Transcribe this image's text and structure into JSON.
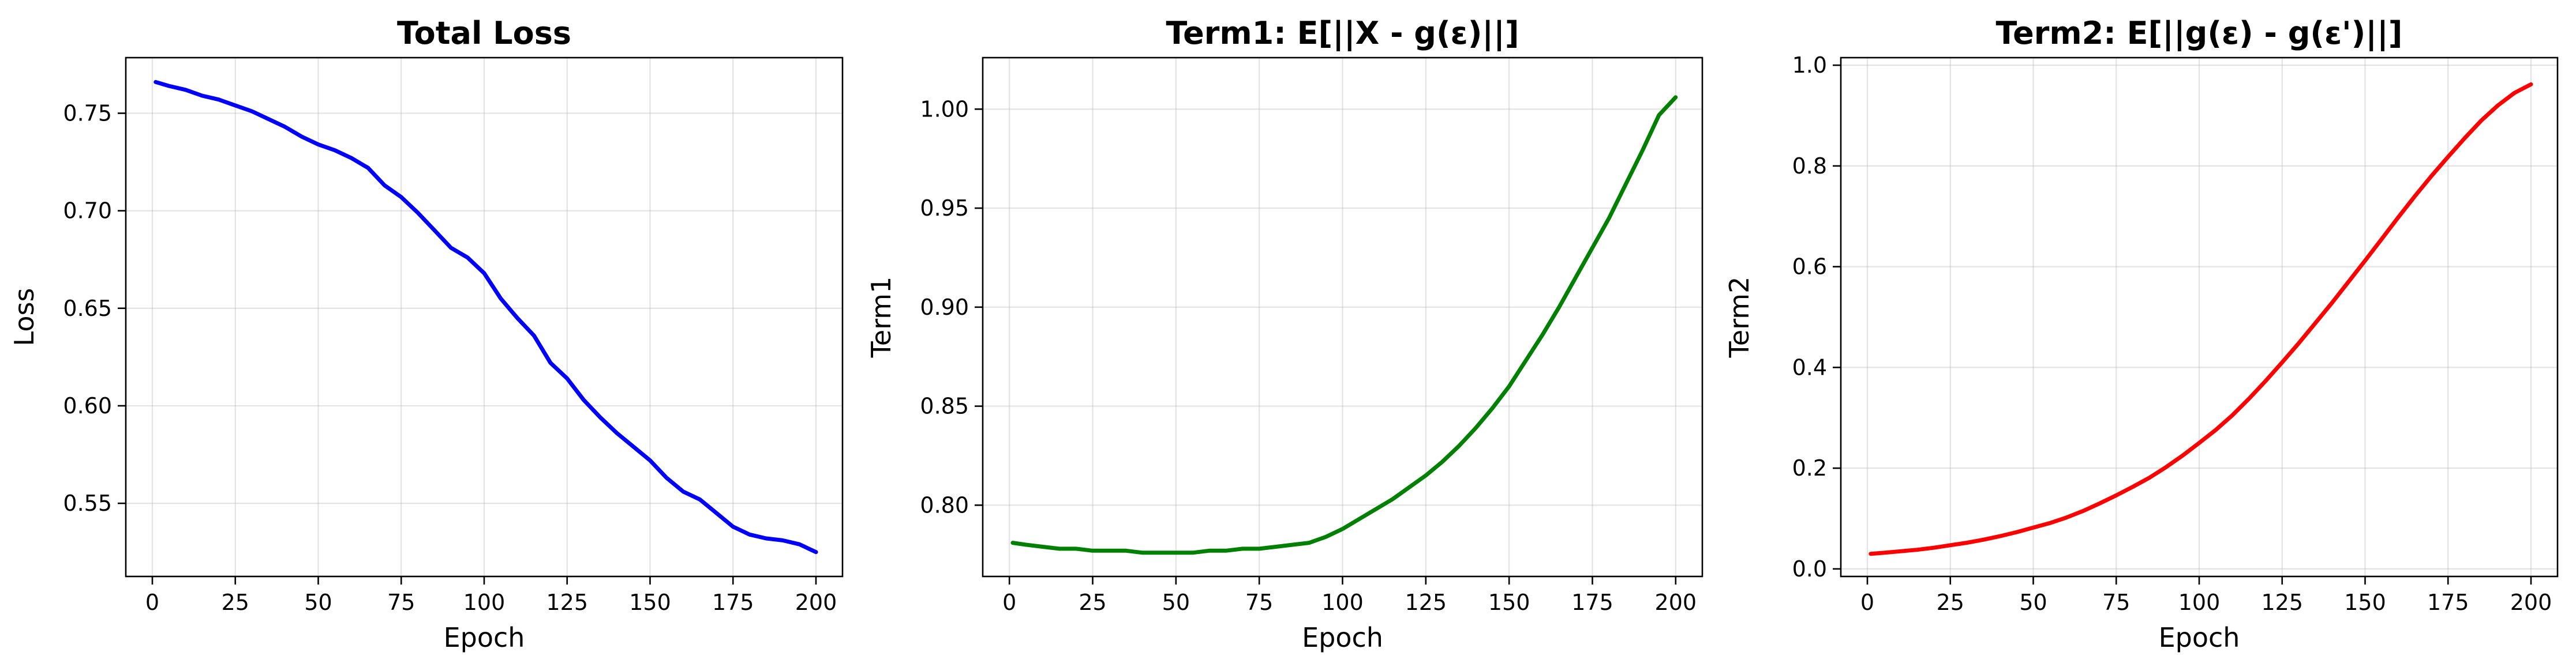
{
  "chart_data": [
    {
      "type": "line",
      "title": "Total Loss",
      "xlabel": "Epoch",
      "ylabel": "Loss",
      "xlim": [
        -8,
        208
      ],
      "ylim": [
        0.5125,
        0.7785
      ],
      "xticks": [
        0,
        25,
        50,
        75,
        100,
        125,
        150,
        175,
        200
      ],
      "yticks": [
        0.55,
        0.6,
        0.65,
        0.7,
        0.75
      ],
      "ytick_labels": [
        "0.55",
        "0.60",
        "0.65",
        "0.70",
        "0.75"
      ],
      "grid": true,
      "series": [
        {
          "color": "#0000ff",
          "x": [
            1,
            5,
            10,
            15,
            20,
            25,
            30,
            35,
            40,
            45,
            50,
            55,
            60,
            65,
            70,
            75,
            80,
            85,
            90,
            95,
            100,
            105,
            110,
            115,
            120,
            125,
            130,
            135,
            140,
            145,
            150,
            155,
            160,
            165,
            170,
            175,
            180,
            185,
            190,
            195,
            200
          ],
          "y": [
            0.766,
            0.764,
            0.762,
            0.759,
            0.757,
            0.754,
            0.751,
            0.747,
            0.743,
            0.738,
            0.734,
            0.731,
            0.727,
            0.722,
            0.713,
            0.707,
            0.699,
            0.69,
            0.681,
            0.676,
            0.668,
            0.655,
            0.645,
            0.636,
            0.622,
            0.614,
            0.603,
            0.594,
            0.586,
            0.579,
            0.572,
            0.563,
            0.556,
            0.552,
            0.545,
            0.538,
            0.534,
            0.532,
            0.531,
            0.529,
            0.525
          ]
        }
      ]
    },
    {
      "type": "line",
      "title": "Term1: E[||X - g(ε)||]",
      "xlabel": "Epoch",
      "ylabel": "Term1",
      "xlim": [
        -8,
        208
      ],
      "ylim": [
        0.764,
        1.026
      ],
      "xticks": [
        0,
        25,
        50,
        75,
        100,
        125,
        150,
        175,
        200
      ],
      "yticks": [
        0.8,
        0.85,
        0.9,
        0.95,
        1.0
      ],
      "ytick_labels": [
        "0.80",
        "0.85",
        "0.90",
        "0.95",
        "1.00"
      ],
      "grid": true,
      "series": [
        {
          "color": "#008000",
          "x": [
            1,
            5,
            10,
            15,
            20,
            25,
            30,
            35,
            40,
            45,
            50,
            55,
            60,
            65,
            70,
            75,
            80,
            85,
            90,
            95,
            100,
            105,
            110,
            115,
            120,
            125,
            130,
            135,
            140,
            145,
            150,
            155,
            160,
            165,
            170,
            175,
            180,
            185,
            190,
            195,
            200
          ],
          "y": [
            0.781,
            0.78,
            0.779,
            0.778,
            0.778,
            0.777,
            0.777,
            0.777,
            0.776,
            0.776,
            0.776,
            0.776,
            0.777,
            0.777,
            0.778,
            0.778,
            0.779,
            0.78,
            0.781,
            0.784,
            0.788,
            0.793,
            0.798,
            0.803,
            0.809,
            0.815,
            0.822,
            0.83,
            0.839,
            0.849,
            0.86,
            0.873,
            0.886,
            0.9,
            0.915,
            0.93,
            0.945,
            0.962,
            0.979,
            0.997,
            1.006
          ]
        }
      ]
    },
    {
      "type": "line",
      "title": "Term2: E[||g(ε) - g(ε')||]",
      "xlabel": "Epoch",
      "ylabel": "Term2",
      "xlim": [
        -8,
        208
      ],
      "ylim": [
        -0.015,
        1.015
      ],
      "xticks": [
        0,
        25,
        50,
        75,
        100,
        125,
        150,
        175,
        200
      ],
      "yticks": [
        0.0,
        0.2,
        0.4,
        0.6,
        0.8,
        1.0
      ],
      "ytick_labels": [
        "0.0",
        "0.2",
        "0.4",
        "0.6",
        "0.8",
        "1.0"
      ],
      "grid": true,
      "series": [
        {
          "color": "#ff0000",
          "x": [
            1,
            5,
            10,
            15,
            20,
            25,
            30,
            35,
            40,
            45,
            50,
            55,
            60,
            65,
            70,
            75,
            80,
            85,
            90,
            95,
            100,
            105,
            110,
            115,
            120,
            125,
            130,
            135,
            140,
            145,
            150,
            155,
            160,
            165,
            170,
            175,
            180,
            185,
            190,
            195,
            200
          ],
          "y": [
            0.03,
            0.032,
            0.035,
            0.038,
            0.042,
            0.047,
            0.052,
            0.058,
            0.065,
            0.073,
            0.082,
            0.091,
            0.102,
            0.115,
            0.13,
            0.146,
            0.163,
            0.181,
            0.202,
            0.225,
            0.25,
            0.276,
            0.305,
            0.338,
            0.373,
            0.41,
            0.448,
            0.488,
            0.528,
            0.57,
            0.612,
            0.655,
            0.698,
            0.74,
            0.78,
            0.818,
            0.855,
            0.89,
            0.92,
            0.945,
            0.962
          ]
        }
      ]
    }
  ]
}
